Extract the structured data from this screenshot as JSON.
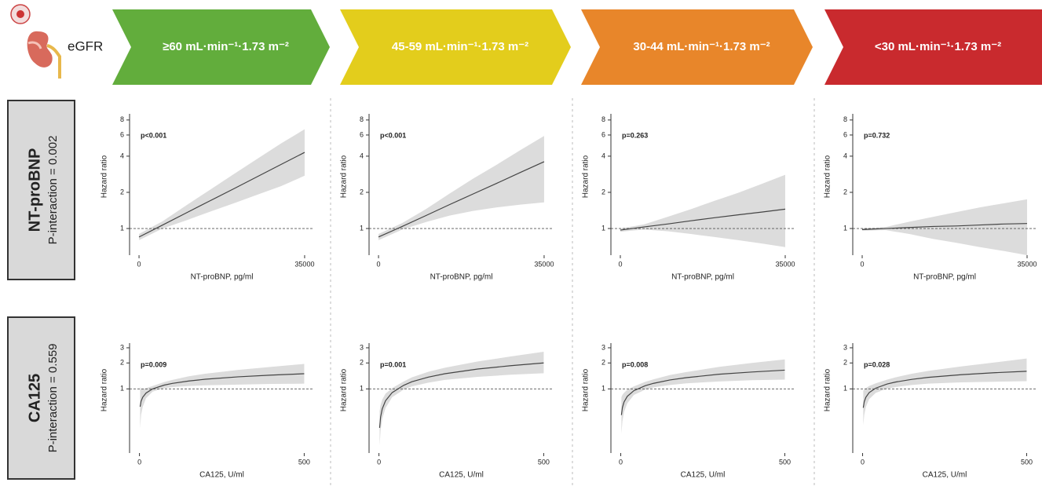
{
  "header": {
    "label": "eGFR",
    "stages": [
      {
        "label": "≥60 mL·min⁻¹·1.73 m⁻²",
        "color": "#62ad3c"
      },
      {
        "label": "45-59 mL·min⁻¹·1.73 m⁻²",
        "color": "#e3cd1c"
      },
      {
        "label": "30-44 mL·min⁻¹·1.73 m⁻²",
        "color": "#e8862a"
      },
      {
        "label": "<30 mL·min⁻¹·1.73 m⁻²",
        "color": "#c92a2e"
      }
    ]
  },
  "rows": [
    {
      "title": "NT-proBNP",
      "subtitle": "P-interaction = 0.002"
    },
    {
      "title": "CA125",
      "subtitle": "P-interaction = 0.559"
    }
  ],
  "chart_data": [
    {
      "type": "line",
      "annotation": "p<0.001",
      "xlabel": "NT-proBNP, pg/ml",
      "ylabel": "Hazard ratio",
      "x": [
        0,
        5000,
        10000,
        15000,
        20000,
        25000,
        30000,
        35000
      ],
      "values": [
        0.85,
        1.07,
        1.35,
        1.7,
        2.14,
        2.7,
        3.41,
        4.3
      ],
      "lower": [
        0.8,
        1.0,
        1.17,
        1.38,
        1.62,
        1.91,
        2.25,
        2.75
      ],
      "upper": [
        0.9,
        1.15,
        1.56,
        2.1,
        2.83,
        3.8,
        5.1,
        6.7
      ],
      "xlim": [
        -2000,
        37000
      ],
      "ylim": [
        0.6,
        9
      ],
      "xticks": [
        0,
        35000
      ],
      "yticks": [
        1,
        2,
        4,
        6,
        8
      ],
      "log_y": true,
      "hline": 1,
      "color": "#444444",
      "band_color": "#dcdcdc"
    },
    {
      "type": "line",
      "annotation": "p<0.001",
      "xlabel": "NT-proBNP, pg/ml",
      "ylabel": "Hazard ratio",
      "x": [
        0,
        5000,
        10000,
        15000,
        20000,
        25000,
        30000,
        35000
      ],
      "values": [
        0.85,
        1.04,
        1.28,
        1.58,
        1.94,
        2.38,
        2.93,
        3.6
      ],
      "lower": [
        0.8,
        0.98,
        1.13,
        1.28,
        1.4,
        1.5,
        1.58,
        1.65
      ],
      "upper": [
        0.9,
        1.11,
        1.45,
        1.95,
        2.6,
        3.4,
        4.5,
        5.9
      ],
      "xlim": [
        -2000,
        37000
      ],
      "ylim": [
        0.6,
        9
      ],
      "xticks": [
        0,
        35000
      ],
      "yticks": [
        1,
        2,
        4,
        6,
        8
      ],
      "log_y": true,
      "hline": 1,
      "color": "#444444",
      "band_color": "#dcdcdc"
    },
    {
      "type": "line",
      "annotation": "p=0.263",
      "xlabel": "NT-proBNP, pg/ml",
      "ylabel": "Hazard ratio",
      "x": [
        0,
        5000,
        10000,
        15000,
        20000,
        25000,
        30000,
        35000
      ],
      "values": [
        0.97,
        1.03,
        1.09,
        1.16,
        1.23,
        1.3,
        1.37,
        1.45
      ],
      "lower": [
        0.94,
        0.98,
        0.95,
        0.9,
        0.85,
        0.8,
        0.75,
        0.7
      ],
      "upper": [
        1.0,
        1.08,
        1.25,
        1.45,
        1.7,
        1.98,
        2.35,
        2.8
      ],
      "xlim": [
        -2000,
        37000
      ],
      "ylim": [
        0.6,
        9
      ],
      "xticks": [
        0,
        35000
      ],
      "yticks": [
        1,
        2,
        4,
        6,
        8
      ],
      "log_y": true,
      "hline": 1,
      "color": "#444444",
      "band_color": "#dcdcdc"
    },
    {
      "type": "line",
      "annotation": "p=0.732",
      "xlabel": "NT-proBNP, pg/ml",
      "ylabel": "Hazard ratio",
      "x": [
        0,
        5000,
        10000,
        15000,
        20000,
        25000,
        30000,
        35000
      ],
      "values": [
        0.98,
        1.0,
        1.02,
        1.04,
        1.05,
        1.07,
        1.09,
        1.1
      ],
      "lower": [
        0.96,
        0.97,
        0.9,
        0.82,
        0.76,
        0.7,
        0.65,
        0.6
      ],
      "upper": [
        1.0,
        1.03,
        1.14,
        1.25,
        1.37,
        1.5,
        1.62,
        1.75
      ],
      "xlim": [
        -2000,
        37000
      ],
      "ylim": [
        0.6,
        9
      ],
      "xticks": [
        0,
        35000
      ],
      "yticks": [
        1,
        2,
        4,
        6,
        8
      ],
      "log_y": true,
      "hline": 1,
      "color": "#444444",
      "band_color": "#dcdcdc"
    },
    {
      "type": "line",
      "annotation": "p=0.009",
      "xlabel": "CA125, U/ml",
      "ylabel": "Hazard ratio",
      "x": [
        2,
        5,
        10,
        20,
        40,
        75,
        100,
        150,
        200,
        300,
        400,
        500
      ],
      "values": [
        0.62,
        0.72,
        0.8,
        0.895,
        1.0,
        1.106,
        1.158,
        1.235,
        1.294,
        1.38,
        1.445,
        1.5
      ],
      "lower": [
        0.35,
        0.5,
        0.62,
        0.78,
        0.93,
        1.02,
        1.05,
        1.08,
        1.1,
        1.12,
        1.14,
        1.15
      ],
      "upper": [
        1.05,
        1.0,
        1.0,
        1.02,
        1.08,
        1.2,
        1.27,
        1.4,
        1.5,
        1.66,
        1.8,
        1.95
      ],
      "xlim": [
        -30,
        530
      ],
      "ylim": [
        0.18,
        3.4
      ],
      "xticks": [
        0,
        500
      ],
      "yticks": [
        1,
        2,
        3
      ],
      "log_y": true,
      "hline": 1,
      "color": "#444444",
      "band_color": "#dcdcdc"
    },
    {
      "type": "line",
      "annotation": "p=0.001",
      "xlabel": "CA125, U/ml",
      "ylabel": "Hazard ratio",
      "x": [
        2,
        5,
        10,
        20,
        40,
        75,
        100,
        150,
        200,
        300,
        400,
        500
      ],
      "values": [
        0.353,
        0.471,
        0.586,
        0.728,
        0.905,
        1.1,
        1.21,
        1.37,
        1.5,
        1.7,
        1.86,
        2.0
      ],
      "lower": [
        0.22,
        0.33,
        0.45,
        0.6,
        0.8,
        0.98,
        1.07,
        1.18,
        1.27,
        1.38,
        1.46,
        1.52
      ],
      "upper": [
        0.55,
        0.65,
        0.75,
        0.88,
        1.02,
        1.22,
        1.36,
        1.58,
        1.76,
        2.08,
        2.38,
        2.7
      ],
      "xlim": [
        -30,
        530
      ],
      "ylim": [
        0.18,
        3.4
      ],
      "xticks": [
        0,
        500
      ],
      "yticks": [
        1,
        2,
        3
      ],
      "log_y": true,
      "hline": 1,
      "color": "#444444",
      "band_color": "#dcdcdc"
    },
    {
      "type": "line",
      "annotation": "p=0.008",
      "xlabel": "CA125, U/ml",
      "ylabel": "Hazard ratio",
      "x": [
        2,
        5,
        10,
        20,
        40,
        75,
        100,
        150,
        200,
        300,
        400,
        500
      ],
      "values": [
        0.497,
        0.606,
        0.705,
        0.819,
        0.953,
        1.09,
        1.16,
        1.27,
        1.35,
        1.48,
        1.57,
        1.65
      ],
      "lower": [
        0.3,
        0.42,
        0.54,
        0.68,
        0.85,
        0.98,
        1.04,
        1.11,
        1.16,
        1.22,
        1.26,
        1.28
      ],
      "upper": [
        0.8,
        0.85,
        0.9,
        0.98,
        1.07,
        1.21,
        1.29,
        1.45,
        1.57,
        1.8,
        2.0,
        2.2
      ],
      "xlim": [
        -30,
        530
      ],
      "ylim": [
        0.18,
        3.4
      ],
      "xticks": [
        0,
        500
      ],
      "yticks": [
        1,
        2,
        3
      ],
      "log_y": true,
      "hline": 1,
      "color": "#444444",
      "band_color": "#dcdcdc"
    },
    {
      "type": "line",
      "annotation": "p=0.028",
      "xlabel": "CA125, U/ml",
      "ylabel": "Hazard ratio",
      "x": [
        2,
        5,
        10,
        20,
        40,
        75,
        100,
        150,
        200,
        300,
        400,
        500
      ],
      "values": [
        0.603,
        0.709,
        0.801,
        0.906,
        1.02,
        1.14,
        1.2,
        1.29,
        1.36,
        1.46,
        1.54,
        1.6
      ],
      "lower": [
        0.38,
        0.5,
        0.62,
        0.76,
        0.9,
        1.01,
        1.05,
        1.11,
        1.15,
        1.19,
        1.21,
        1.23
      ],
      "upper": [
        0.95,
        0.98,
        1.02,
        1.08,
        1.16,
        1.28,
        1.36,
        1.5,
        1.62,
        1.82,
        2.02,
        2.25
      ],
      "xlim": [
        -30,
        530
      ],
      "ylim": [
        0.18,
        3.4
      ],
      "xticks": [
        0,
        500
      ],
      "yticks": [
        1,
        2,
        3
      ],
      "log_y": true,
      "hline": 1,
      "color": "#444444",
      "band_color": "#dcdcdc"
    }
  ]
}
